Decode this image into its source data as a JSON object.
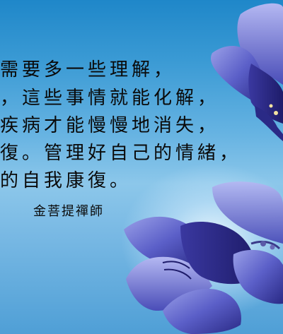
{
  "quote_lines": [
    "需要多一些理解，",
    "，這些事情就能化解，",
    "疾病才能慢慢地消失，",
    "復。管理好自己的情緒，",
    "的自我康復。"
  ],
  "author": "金菩提禪師",
  "colors": {
    "sky_top": "#1f87c9",
    "sky_mid": "#8cc7ea",
    "petal_dark": "#2b2a86",
    "petal_light": "#7b7fd6",
    "text": "#0a0a0a"
  }
}
